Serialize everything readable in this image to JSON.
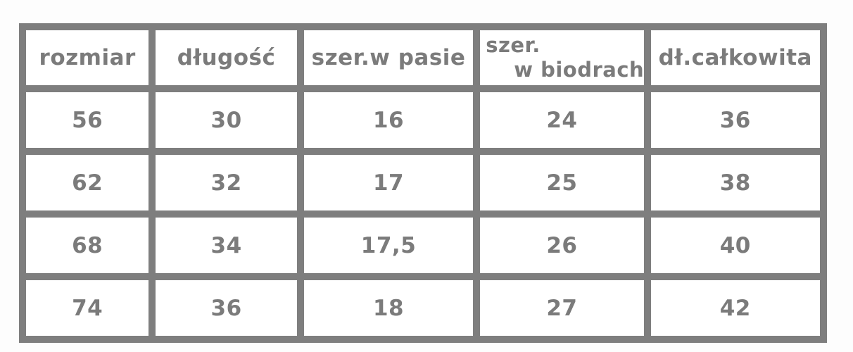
{
  "colors": {
    "border-color": "#7e7e7e",
    "text-color": "#7b7b7b",
    "cell-bg": "#ffffff",
    "page-bg": "#fdfdfd"
  },
  "table": {
    "columns": [
      {
        "label": "rozmiar"
      },
      {
        "label": "długość"
      },
      {
        "label": "szer.w pasie"
      },
      {
        "label_line1": "szer.",
        "label_line2": "w biodrach"
      },
      {
        "label": "dł.całkowita"
      }
    ],
    "rows": [
      {
        "rozmiar": "56",
        "dlugosc": "30",
        "szer_pas": "16",
        "szer_biodra": "24",
        "dl_calkowita": "36"
      },
      {
        "rozmiar": "62",
        "dlugosc": "32",
        "szer_pas": "17",
        "szer_biodra": "25",
        "dl_calkowita": "38"
      },
      {
        "rozmiar": "68",
        "dlugosc": "34",
        "szer_pas": "17,5",
        "szer_biodra": "26",
        "dl_calkowita": "40"
      },
      {
        "rozmiar": "74",
        "dlugosc": "36",
        "szer_pas": "18",
        "szer_biodra": "27",
        "dl_calkowita": "42"
      }
    ]
  }
}
